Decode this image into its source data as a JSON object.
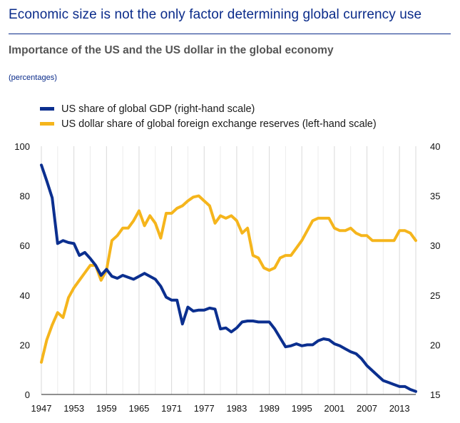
{
  "page": {
    "heading": "Economic size is not the only factor determining global currency use"
  },
  "chart_data": {
    "type": "line",
    "title": "Importance of the US and the US dollar in the global economy",
    "subtitle": "(percentages)",
    "xlabel": "",
    "ylabel_left": "",
    "ylabel_right": "",
    "xlim": [
      1947,
      2016
    ],
    "ylim_left": [
      0,
      100
    ],
    "ylim_right": [
      15,
      40
    ],
    "x_ticks": [
      1947,
      1953,
      1959,
      1965,
      1971,
      1977,
      1983,
      1989,
      1995,
      2001,
      2007,
      2013
    ],
    "y_ticks_left": [
      0,
      20,
      40,
      60,
      80,
      100
    ],
    "y_ticks_right": [
      15,
      20,
      25,
      30,
      35,
      40
    ],
    "grid": "vertical",
    "legend_position": "top-left",
    "series": [
      {
        "name": "US share of global GDP (right-hand scale)",
        "axis": "right",
        "color": "#0b2f8f",
        "x": [
          1947,
          1948,
          1949,
          1950,
          1951,
          1952,
          1953,
          1954,
          1955,
          1956,
          1957,
          1958,
          1959,
          1960,
          1961,
          1962,
          1963,
          1964,
          1965,
          1966,
          1967,
          1968,
          1969,
          1970,
          1971,
          1972,
          1973,
          1974,
          1975,
          1976,
          1977,
          1978,
          1979,
          1980,
          1981,
          1982,
          1983,
          1984,
          1985,
          1986,
          1987,
          1988,
          1989,
          1990,
          1991,
          1992,
          1993,
          1994,
          1995,
          1996,
          1997,
          1998,
          1999,
          2000,
          2001,
          2002,
          2003,
          2004,
          2005,
          2006,
          2007,
          2008,
          2009,
          2010,
          2011,
          2012,
          2013,
          2014,
          2015,
          2016
        ],
        "values": [
          38.1,
          36.5,
          34.8,
          30.2,
          30.5,
          30.3,
          30.2,
          29.0,
          29.3,
          28.7,
          28.0,
          27.0,
          27.6,
          26.9,
          26.7,
          27.0,
          26.8,
          26.6,
          26.9,
          27.2,
          26.9,
          26.6,
          25.9,
          24.8,
          24.5,
          24.5,
          22.1,
          23.8,
          23.4,
          23.5,
          23.5,
          23.7,
          23.6,
          21.6,
          21.7,
          21.3,
          21.7,
          22.3,
          22.4,
          22.4,
          22.3,
          22.3,
          22.3,
          21.6,
          20.7,
          19.8,
          19.9,
          20.1,
          19.9,
          20.0,
          20.0,
          20.4,
          20.6,
          20.5,
          20.1,
          19.9,
          19.6,
          19.3,
          19.1,
          18.6,
          17.9,
          17.4,
          16.9,
          16.4,
          16.2,
          16.0,
          15.8,
          15.8,
          15.5,
          15.3
        ]
      },
      {
        "name": "US dollar share of global foreign exchange reserves (left-hand scale)",
        "axis": "left",
        "color": "#f5b51c",
        "x": [
          1947,
          1948,
          1949,
          1950,
          1951,
          1952,
          1953,
          1954,
          1955,
          1956,
          1957,
          1958,
          1959,
          1960,
          1961,
          1962,
          1963,
          1964,
          1965,
          1966,
          1967,
          1968,
          1969,
          1970,
          1971,
          1972,
          1973,
          1974,
          1975,
          1976,
          1977,
          1978,
          1979,
          1980,
          1981,
          1982,
          1983,
          1984,
          1985,
          1986,
          1987,
          1988,
          1989,
          1990,
          1991,
          1992,
          1993,
          1994,
          1995,
          1996,
          1997,
          1998,
          1999,
          2000,
          2001,
          2002,
          2003,
          2004,
          2005,
          2006,
          2007,
          2008,
          2009,
          2010,
          2011,
          2012,
          2013,
          2014,
          2015,
          2016
        ],
        "values": [
          13,
          22,
          28,
          33,
          31,
          39,
          43,
          46,
          49,
          52,
          52,
          46,
          50,
          62,
          64,
          67,
          67,
          70,
          74,
          68,
          72,
          69,
          63,
          73,
          73,
          75,
          76,
          78,
          79.5,
          80,
          78,
          76,
          69,
          72,
          71,
          72,
          70,
          65,
          67,
          56,
          55,
          51,
          50,
          51,
          55,
          56,
          56,
          59,
          62,
          66,
          70,
          71,
          71,
          71,
          67,
          66,
          66,
          67,
          65,
          64,
          64,
          62,
          62,
          62,
          62,
          62,
          66,
          66,
          65,
          62
        ]
      }
    ]
  }
}
